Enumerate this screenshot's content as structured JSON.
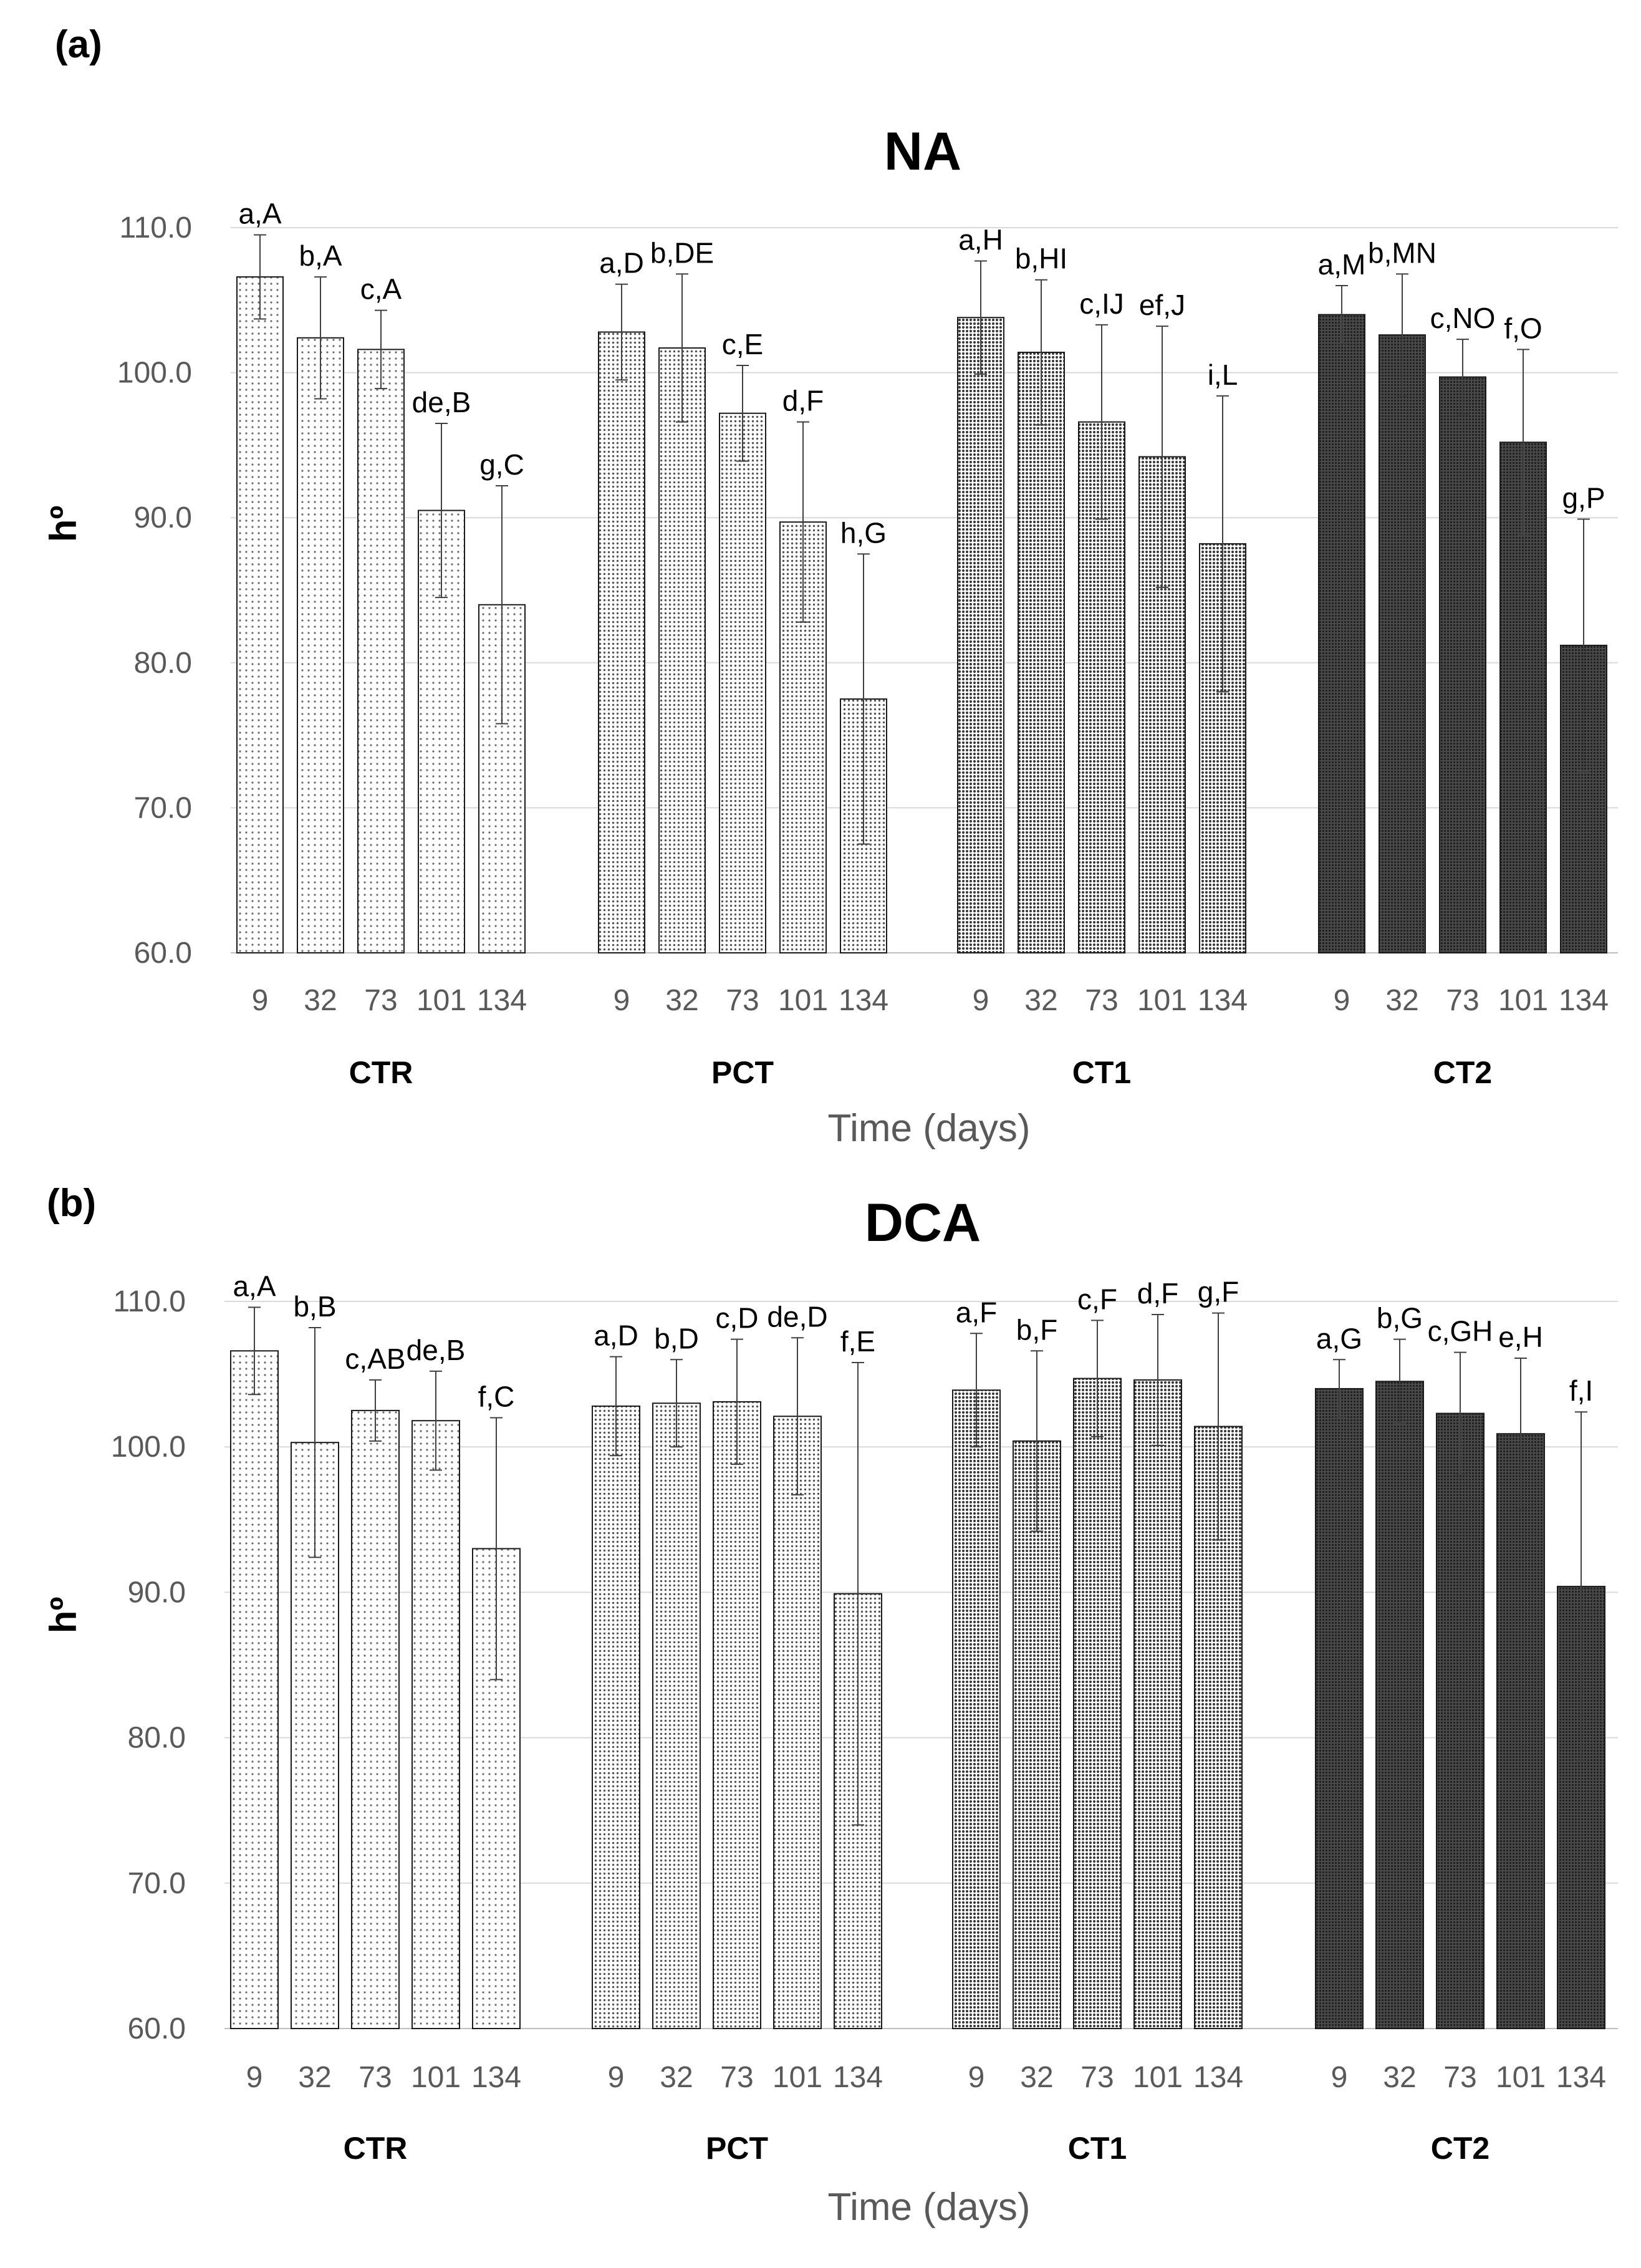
{
  "x_axis_title": "Time (days)",
  "y_axis_title": "hº",
  "treatment_colors": {
    "CTR": "#f6f6f6",
    "PCT": "#e4e4e4",
    "CT1": "#b8b8b8",
    "CT2": "#555555"
  },
  "chart_data": [
    {
      "type": "bar",
      "panel_label": "(a)",
      "title": "NA",
      "xlabel": "Time (days)",
      "ylabel": "hº",
      "ylim": [
        60,
        110
      ],
      "yticks": [
        "60.0",
        "70.0",
        "80.0",
        "90.0",
        "100.0",
        "110.0"
      ],
      "grid": true,
      "categories": [
        "9",
        "32",
        "73",
        "101",
        "134"
      ],
      "groups": [
        {
          "name": "CTR",
          "values": [
            106.6,
            102.4,
            101.6,
            90.5,
            84.0
          ],
          "errors": [
            2.9,
            4.2,
            2.7,
            6.0,
            8.2
          ],
          "labels": [
            "a,A",
            "b,A",
            "c,A",
            "de,B",
            "g,C"
          ]
        },
        {
          "name": "PCT",
          "values": [
            102.8,
            101.7,
            97.2,
            89.7,
            77.5
          ],
          "errors": [
            3.3,
            5.1,
            3.3,
            6.9,
            10.0
          ],
          "labels": [
            "a,D",
            "b,DE",
            "c,E",
            "d,F",
            "h,G"
          ]
        },
        {
          "name": "CT1",
          "values": [
            103.8,
            101.4,
            96.6,
            94.2,
            88.2
          ],
          "errors": [
            3.9,
            5.0,
            6.7,
            9.0,
            10.2
          ],
          "labels": [
            "a,H",
            "b,HI",
            "c,IJ",
            "ef,J",
            "i,L"
          ]
        },
        {
          "name": "CT2",
          "values": [
            104.0,
            102.6,
            99.7,
            95.2,
            81.2
          ],
          "errors": [
            2.0,
            4.2,
            2.6,
            6.4,
            8.7
          ],
          "labels": [
            "a,M",
            "b,MN",
            "c,NO",
            "f,O",
            "g,P"
          ]
        }
      ]
    },
    {
      "type": "bar",
      "panel_label": "(b)",
      "title": "DCA",
      "xlabel": "Time (days)",
      "ylabel": "hº",
      "ylim": [
        60,
        110
      ],
      "yticks": [
        "60.0",
        "70.0",
        "80.0",
        "90.0",
        "100.0",
        "110.0"
      ],
      "grid": true,
      "categories": [
        "9",
        "32",
        "73",
        "101",
        "134"
      ],
      "groups": [
        {
          "name": "CTR",
          "values": [
            106.6,
            100.3,
            102.5,
            101.8,
            93.0
          ],
          "errors": [
            3.0,
            7.9,
            2.1,
            3.4,
            9.0
          ],
          "labels": [
            "a,A",
            "b,B",
            "c,AB",
            "de,B",
            "f,C"
          ]
        },
        {
          "name": "PCT",
          "values": [
            102.8,
            103.0,
            103.1,
            102.1,
            89.9
          ],
          "errors": [
            3.4,
            3.0,
            4.3,
            5.4,
            15.9
          ],
          "labels": [
            "a,D",
            "b,D",
            "c,D",
            "de,D",
            "f,E"
          ]
        },
        {
          "name": "CT1",
          "values": [
            103.9,
            100.4,
            104.7,
            104.6,
            101.4
          ],
          "errors": [
            3.9,
            6.2,
            4.0,
            4.5,
            7.8
          ],
          "labels": [
            "a,F",
            "b,F",
            "c,F",
            "d,F",
            "g,F"
          ]
        },
        {
          "name": "CT2",
          "values": [
            104.0,
            104.5,
            102.3,
            100.9,
            90.4
          ],
          "errors": [
            2.0,
            2.9,
            4.2,
            5.2,
            12.0
          ],
          "labels": [
            "a,G",
            "b,G",
            "c,GH",
            "e,H",
            "f,I"
          ]
        }
      ]
    }
  ]
}
